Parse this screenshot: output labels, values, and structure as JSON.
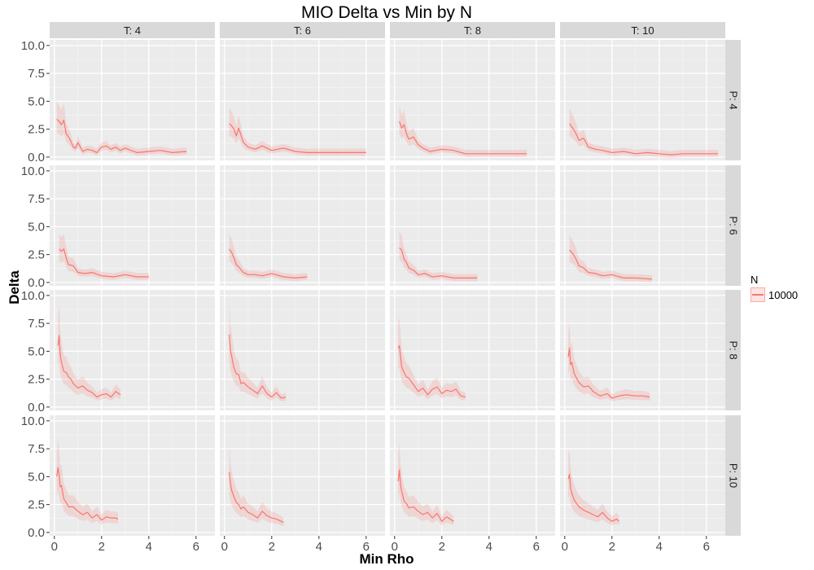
{
  "chart_data": {
    "type": "line",
    "title": "MIO Delta vs Min by N",
    "xlabel": "Min Rho",
    "ylabel": "Delta",
    "xlim": [
      -0.2,
      6.8
    ],
    "ylim": [
      -0.3,
      10.5
    ],
    "x_ticks": [
      "0",
      "2",
      "4",
      "6"
    ],
    "y_ticks": [
      "0.0",
      "2.5",
      "5.0",
      "7.5",
      "10.0"
    ],
    "col_facets": [
      "T: 4",
      "T: 6",
      "T: 8",
      "T: 10"
    ],
    "row_facets": [
      "P: 4",
      "P: 6",
      "P: 8",
      "P: 10"
    ],
    "legend": {
      "title": "N",
      "entries": [
        "10000"
      ],
      "position": "right"
    },
    "series_color": "#F8766D",
    "grid": true,
    "panels": [
      {
        "col": "T: 4",
        "row": "P: 4",
        "x": [
          0.1,
          0.2,
          0.3,
          0.4,
          0.5,
          0.6,
          0.7,
          0.8,
          0.9,
          1.0,
          1.2,
          1.4,
          1.6,
          1.8,
          2.0,
          2.2,
          2.4,
          2.6,
          2.8,
          3.0,
          3.5,
          4.0,
          4.5,
          5.0,
          5.6
        ],
        "y": [
          3.4,
          3.2,
          2.9,
          3.3,
          2.1,
          1.8,
          1.4,
          0.9,
          0.8,
          1.3,
          0.5,
          0.7,
          0.6,
          0.4,
          0.9,
          1.0,
          0.7,
          0.9,
          0.6,
          0.8,
          0.4,
          0.5,
          0.6,
          0.4,
          0.5
        ]
      },
      {
        "col": "T: 6",
        "row": "P: 4",
        "x": [
          0.2,
          0.3,
          0.4,
          0.5,
          0.6,
          0.8,
          1.0,
          1.3,
          1.6,
          2.0,
          2.5,
          3.0,
          3.5,
          4.0,
          4.5,
          5.0,
          5.5,
          6.0
        ],
        "y": [
          3.0,
          2.8,
          2.5,
          1.9,
          2.6,
          1.3,
          0.9,
          0.7,
          1.0,
          0.6,
          0.8,
          0.5,
          0.4,
          0.4,
          0.4,
          0.4,
          0.4,
          0.4
        ]
      },
      {
        "col": "T: 8",
        "row": "P: 4",
        "x": [
          0.2,
          0.3,
          0.4,
          0.5,
          0.6,
          0.8,
          1.0,
          1.2,
          1.5,
          2.0,
          2.5,
          3.0,
          3.5,
          4.0,
          4.5,
          5.0,
          5.6
        ],
        "y": [
          3.2,
          2.6,
          2.9,
          2.1,
          1.6,
          1.8,
          1.1,
          0.8,
          0.5,
          0.7,
          0.6,
          0.3,
          0.3,
          0.3,
          0.3,
          0.3,
          0.3
        ]
      },
      {
        "col": "T: 10",
        "row": "P: 4",
        "x": [
          0.2,
          0.3,
          0.4,
          0.5,
          0.6,
          0.8,
          1.0,
          1.3,
          1.6,
          2.0,
          2.5,
          3.0,
          3.5,
          4.0,
          4.5,
          5.0,
          5.5,
          6.0,
          6.5
        ],
        "y": [
          3.0,
          2.7,
          2.4,
          2.0,
          1.5,
          1.7,
          0.9,
          0.7,
          0.6,
          0.4,
          0.5,
          0.3,
          0.4,
          0.3,
          0.2,
          0.3,
          0.3,
          0.3,
          0.3
        ]
      },
      {
        "col": "T: 4",
        "row": "P: 6",
        "x": [
          0.2,
          0.3,
          0.4,
          0.5,
          0.6,
          0.8,
          1.0,
          1.3,
          1.6,
          2.0,
          2.5,
          3.0,
          3.5,
          4.0
        ],
        "y": [
          3.0,
          2.8,
          3.0,
          2.2,
          1.6,
          1.5,
          0.9,
          0.8,
          0.9,
          0.6,
          0.5,
          0.7,
          0.5,
          0.5
        ]
      },
      {
        "col": "T: 6",
        "row": "P: 6",
        "x": [
          0.2,
          0.3,
          0.4,
          0.5,
          0.6,
          0.8,
          1.0,
          1.3,
          1.6,
          2.0,
          2.5,
          3.0,
          3.5
        ],
        "y": [
          3.0,
          2.7,
          2.2,
          1.6,
          1.4,
          0.9,
          0.7,
          0.7,
          0.6,
          0.8,
          0.5,
          0.4,
          0.5
        ]
      },
      {
        "col": "T: 8",
        "row": "P: 6",
        "x": [
          0.2,
          0.3,
          0.4,
          0.5,
          0.6,
          0.8,
          1.0,
          1.3,
          1.6,
          2.0,
          2.5,
          3.0,
          3.5
        ],
        "y": [
          3.1,
          2.9,
          2.1,
          1.8,
          1.3,
          1.1,
          0.7,
          0.8,
          0.5,
          0.6,
          0.4,
          0.4,
          0.4
        ]
      },
      {
        "col": "T: 10",
        "row": "P: 6",
        "x": [
          0.2,
          0.3,
          0.4,
          0.5,
          0.6,
          0.8,
          1.0,
          1.3,
          1.6,
          2.0,
          2.5,
          3.0,
          3.7
        ],
        "y": [
          2.9,
          2.7,
          2.4,
          2.0,
          1.5,
          1.3,
          0.9,
          0.8,
          0.6,
          0.7,
          0.4,
          0.4,
          0.3
        ]
      },
      {
        "col": "T: 4",
        "row": "P: 8",
        "x": [
          0.15,
          0.2,
          0.25,
          0.3,
          0.4,
          0.5,
          0.6,
          0.7,
          0.8,
          1.0,
          1.2,
          1.4,
          1.6,
          1.8,
          2.0,
          2.2,
          2.4,
          2.6,
          2.8
        ],
        "y": [
          5.5,
          6.4,
          4.7,
          4.0,
          3.2,
          3.1,
          2.7,
          2.5,
          2.1,
          1.7,
          1.9,
          1.5,
          1.3,
          0.9,
          1.1,
          1.2,
          0.9,
          1.4,
          1.1
        ]
      },
      {
        "col": "T: 6",
        "row": "P: 8",
        "x": [
          0.2,
          0.25,
          0.3,
          0.4,
          0.5,
          0.6,
          0.7,
          0.8,
          1.0,
          1.2,
          1.4,
          1.6,
          1.8,
          2.0,
          2.2,
          2.4,
          2.6
        ],
        "y": [
          6.5,
          5.0,
          4.6,
          3.5,
          3.0,
          2.9,
          2.1,
          2.2,
          1.8,
          1.5,
          1.2,
          1.9,
          1.2,
          0.9,
          1.3,
          0.8,
          0.9
        ]
      },
      {
        "col": "T: 8",
        "row": "P: 8",
        "x": [
          0.15,
          0.2,
          0.25,
          0.3,
          0.4,
          0.5,
          0.6,
          0.8,
          1.0,
          1.2,
          1.4,
          1.6,
          1.8,
          2.0,
          2.2,
          2.4,
          2.6,
          2.8,
          3.0
        ],
        "y": [
          5.3,
          5.5,
          4.5,
          3.6,
          3.1,
          2.7,
          2.6,
          2.0,
          1.4,
          1.7,
          1.1,
          1.6,
          1.8,
          1.2,
          1.5,
          1.4,
          1.6,
          1.0,
          0.9
        ]
      },
      {
        "col": "T: 10",
        "row": "P: 8",
        "x": [
          0.15,
          0.2,
          0.25,
          0.3,
          0.4,
          0.5,
          0.6,
          0.8,
          1.0,
          1.2,
          1.5,
          1.8,
          2.0,
          2.3,
          2.6,
          3.0,
          3.3,
          3.6
        ],
        "y": [
          4.5,
          5.3,
          3.8,
          4.0,
          3.0,
          2.6,
          2.2,
          1.8,
          1.9,
          1.4,
          1.0,
          1.2,
          0.8,
          1.0,
          1.1,
          1.0,
          1.0,
          0.9
        ]
      },
      {
        "col": "T: 4",
        "row": "P: 10",
        "x": [
          0.1,
          0.15,
          0.2,
          0.25,
          0.3,
          0.4,
          0.5,
          0.6,
          0.8,
          1.0,
          1.2,
          1.4,
          1.6,
          1.8,
          2.0,
          2.2,
          2.4,
          2.6,
          2.7
        ],
        "y": [
          5.0,
          5.8,
          5.2,
          4.1,
          4.2,
          3.0,
          2.7,
          2.3,
          2.3,
          1.9,
          1.6,
          1.8,
          1.3,
          1.6,
          1.1,
          1.4,
          1.3,
          1.3,
          1.2
        ]
      },
      {
        "col": "T: 6",
        "row": "P: 10",
        "x": [
          0.2,
          0.25,
          0.3,
          0.4,
          0.5,
          0.6,
          0.7,
          0.8,
          1.0,
          1.2,
          1.4,
          1.6,
          1.8,
          2.0,
          2.2,
          2.4,
          2.5
        ],
        "y": [
          5.4,
          4.4,
          3.8,
          3.2,
          2.7,
          2.5,
          2.1,
          2.3,
          1.8,
          1.6,
          1.3,
          1.9,
          1.5,
          1.3,
          1.2,
          1.0,
          0.9
        ]
      },
      {
        "col": "T: 8",
        "row": "P: 10",
        "x": [
          0.15,
          0.2,
          0.25,
          0.3,
          0.4,
          0.5,
          0.6,
          0.8,
          1.0,
          1.2,
          1.4,
          1.6,
          1.8,
          2.0,
          2.2,
          2.5
        ],
        "y": [
          4.6,
          5.6,
          4.2,
          3.7,
          2.8,
          2.6,
          2.2,
          2.3,
          1.9,
          1.6,
          1.8,
          1.3,
          1.7,
          1.0,
          1.4,
          1.0
        ]
      },
      {
        "col": "T: 10",
        "row": "P: 10",
        "x": [
          0.15,
          0.2,
          0.25,
          0.3,
          0.4,
          0.5,
          0.6,
          0.8,
          1.0,
          1.2,
          1.4,
          1.6,
          1.8,
          2.0,
          2.2,
          2.3
        ],
        "y": [
          4.8,
          5.2,
          4.0,
          3.5,
          2.9,
          2.6,
          2.3,
          2.0,
          1.8,
          1.6,
          1.4,
          1.8,
          1.3,
          1.0,
          1.2,
          1.0
        ]
      }
    ]
  }
}
